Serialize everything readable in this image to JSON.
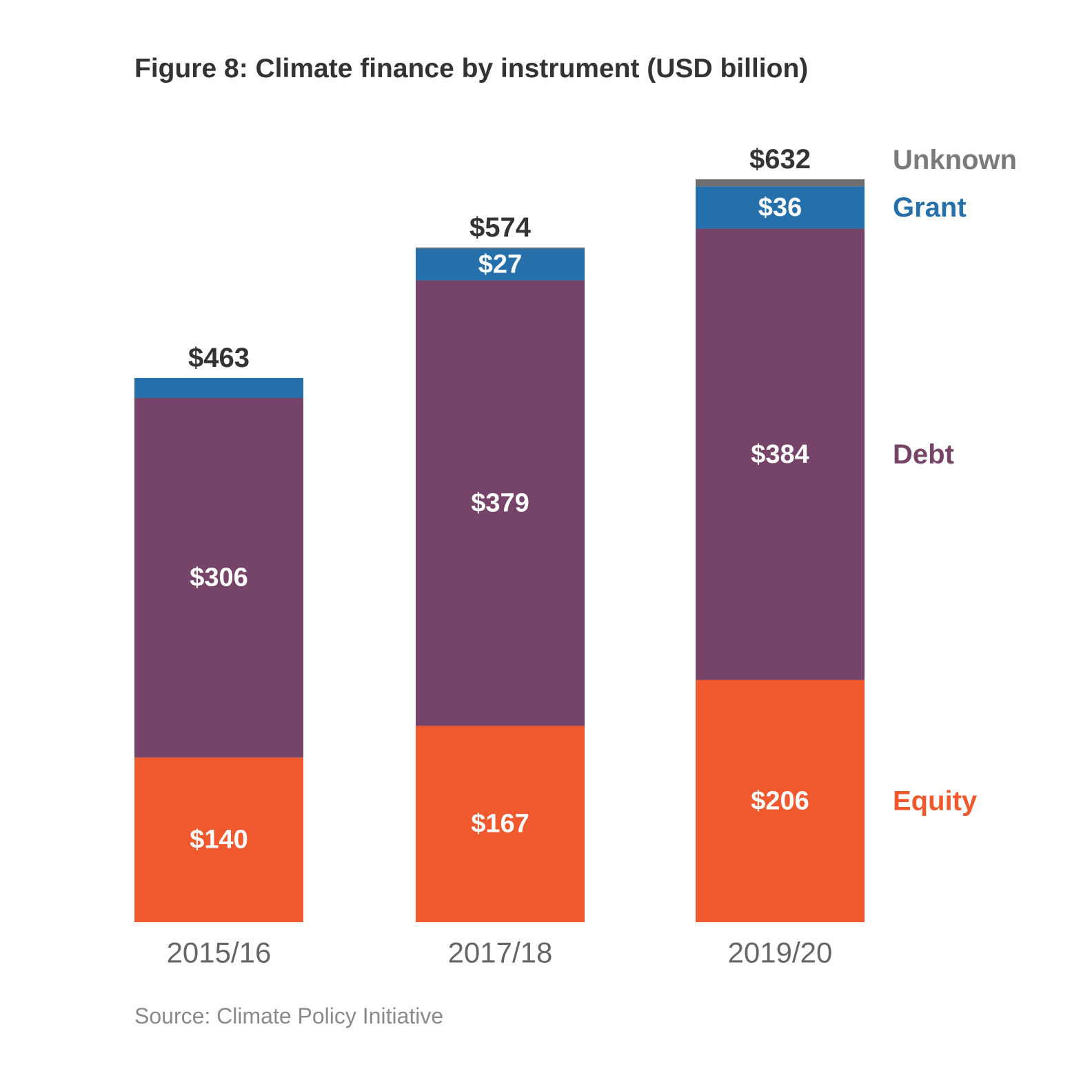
{
  "chart_data": {
    "type": "bar",
    "stacked": true,
    "title": "Figure 8: Climate finance by instrument (USD billion)",
    "source": "Source: Climate Policy Initiative",
    "categories": [
      "2015/16",
      "2017/18",
      "2019/20"
    ],
    "totals": [
      463,
      574,
      632
    ],
    "total_labels": [
      "$463",
      "$574",
      "$632"
    ],
    "series": [
      {
        "name": "Equity",
        "values": [
          140,
          167,
          206
        ],
        "labels": [
          "$140",
          "$167",
          "$206"
        ],
        "color": "#f0582e"
      },
      {
        "name": "Debt",
        "values": [
          306,
          379,
          384
        ],
        "labels": [
          "$306",
          "$379",
          "$384"
        ],
        "color": "#764468"
      },
      {
        "name": "Grant",
        "values": [
          17,
          27,
          36
        ],
        "labels": [
          "",
          "$27",
          "$36"
        ],
        "color": "#2570aa"
      },
      {
        "name": "Unknown",
        "values": [
          0,
          1,
          6
        ],
        "labels": [
          "",
          "",
          ""
        ],
        "color": "#6d6e70"
      }
    ],
    "ylim": [
      0,
      632
    ],
    "xlabel": "",
    "ylabel": "",
    "grid": false,
    "legend": "right, aligned with segments of last bar"
  }
}
